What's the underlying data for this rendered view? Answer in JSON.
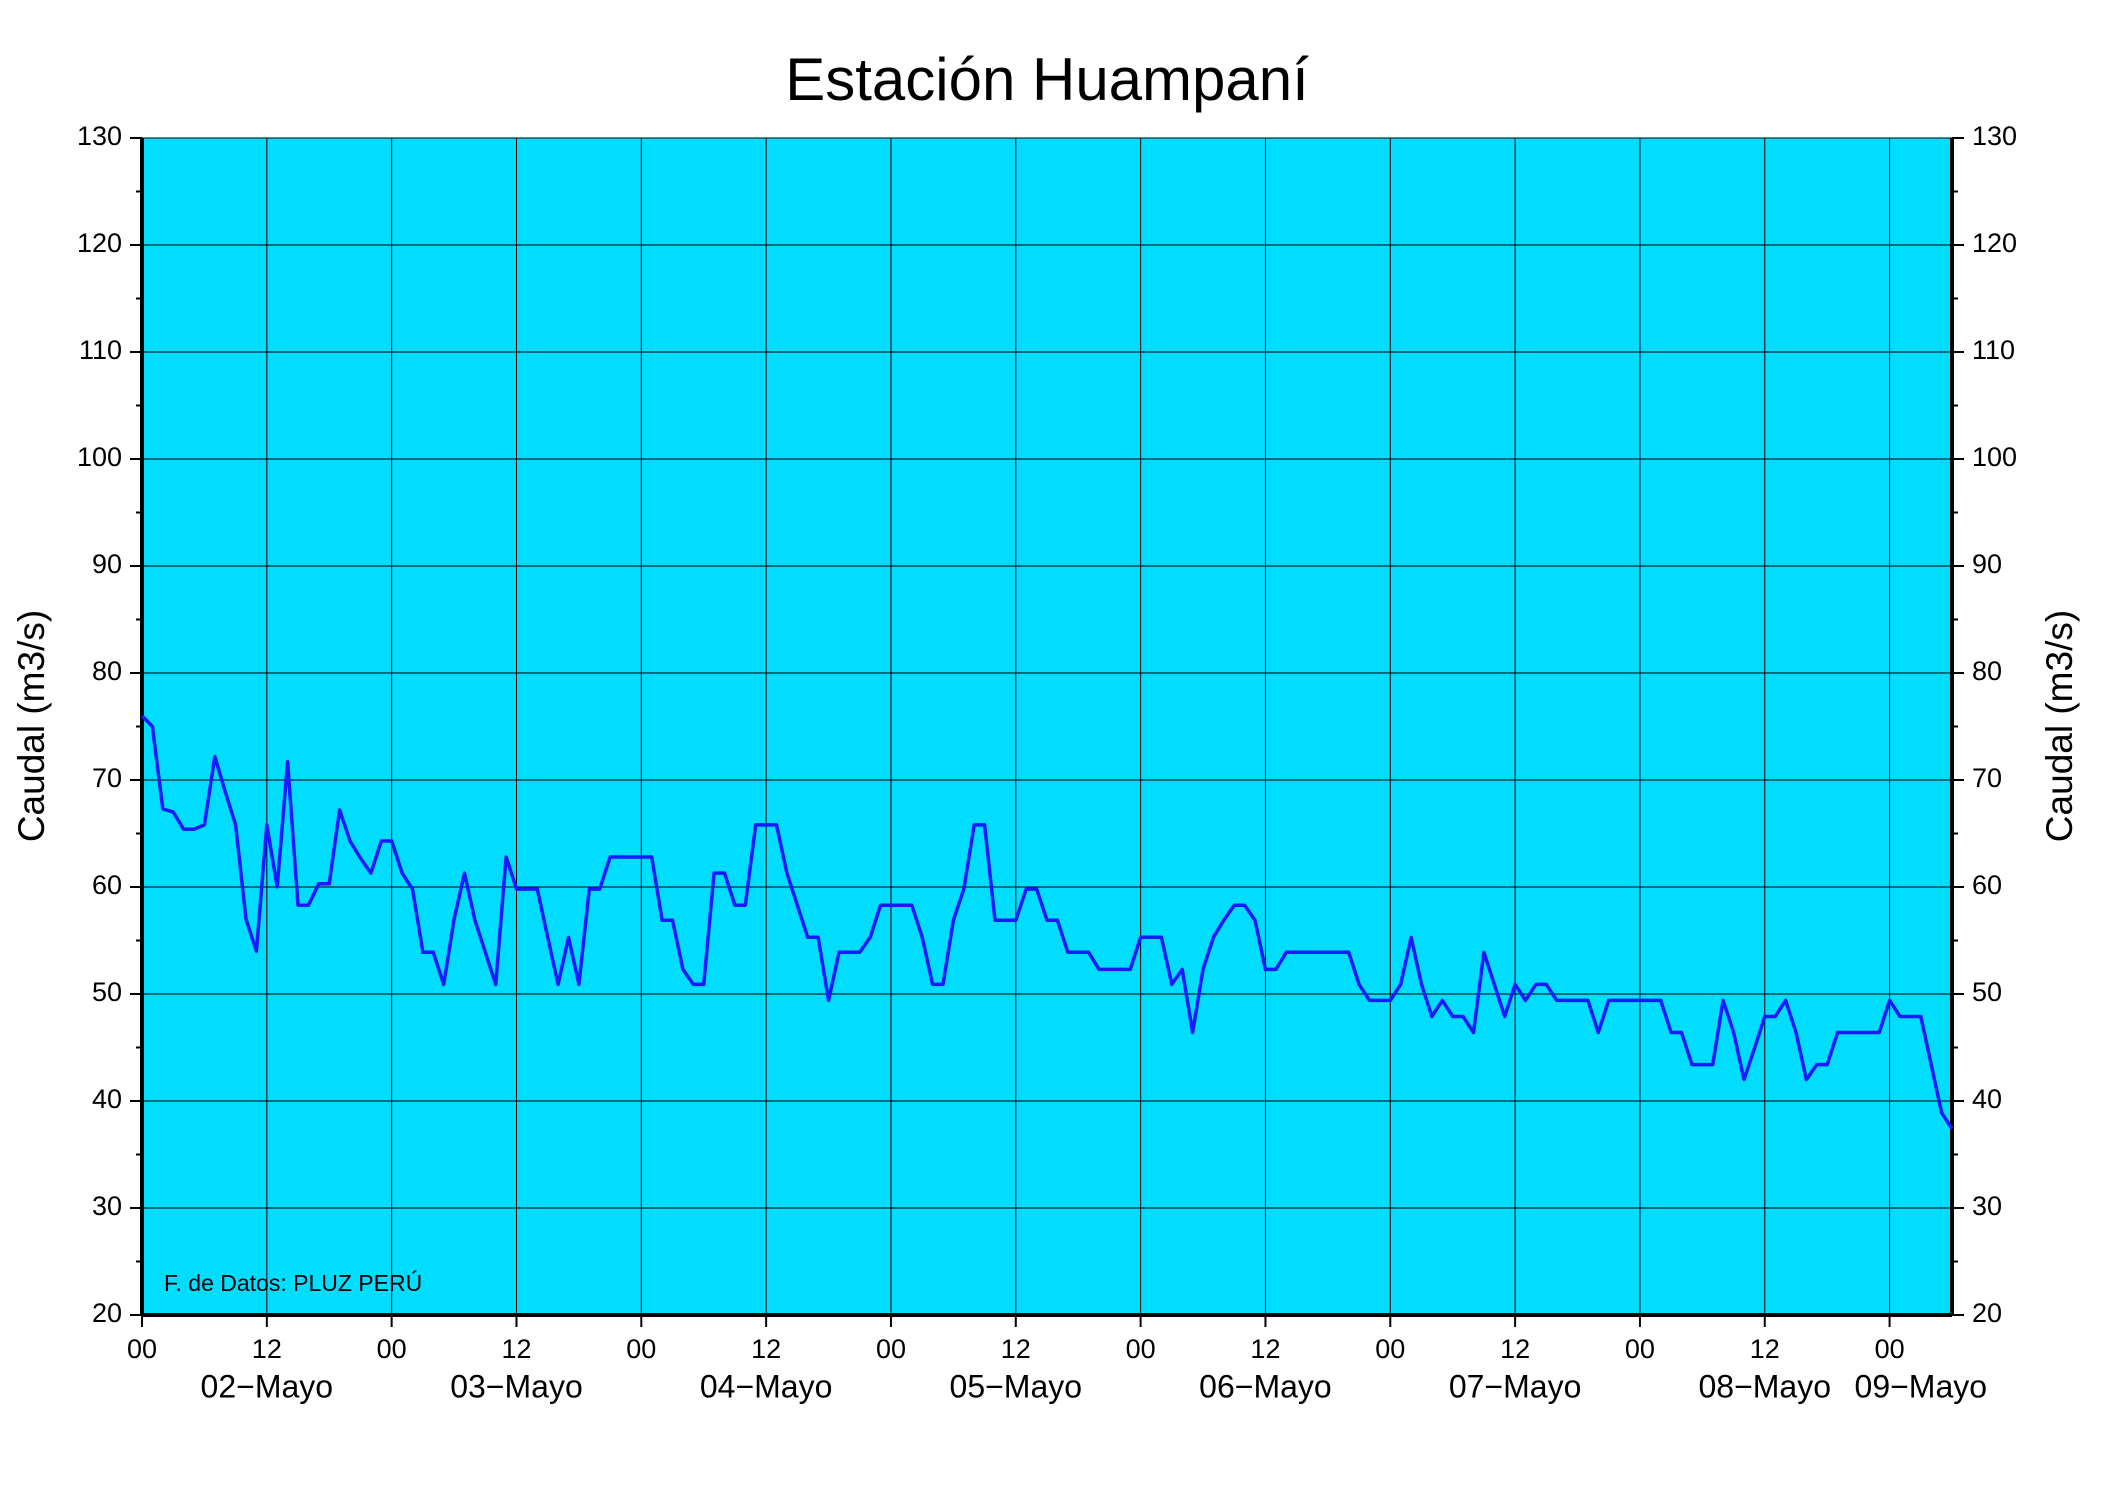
{
  "chart_data": {
    "type": "line",
    "title": "Estación Huampaní",
    "ylabel": "Caudal (m3/s)",
    "y2label": "Caudal (m3/s)",
    "annotation": "F. de Datos: PLUZ PERÚ",
    "xlim": [
      0,
      174
    ],
    "xticks": [
      {
        "value": 0,
        "label": "00"
      },
      12,
      {
        "value": 24,
        "label": "00"
      },
      {
        "value": 36,
        "label": "12"
      },
      {
        "value": 48,
        "label": "00"
      },
      {
        "value": 60,
        "label": "12"
      },
      {
        "value": 72,
        "label": "00"
      },
      {
        "value": 84,
        "label": "12"
      },
      {
        "value": 96,
        "label": "00"
      },
      {
        "value": 108,
        "label": "12"
      },
      {
        "value": 120,
        "label": "00"
      },
      {
        "value": 132,
        "label": "12"
      },
      {
        "value": 144,
        "label": "00"
      },
      {
        "value": 156,
        "label": "12"
      },
      {
        "value": 168,
        "label": "00"
      }
    ],
    "date_labels": [
      {
        "value": 12,
        "label": "02−Mayo"
      },
      {
        "value": 36,
        "label": "03−Mayo"
      },
      {
        "value": 60,
        "label": "04−Mayo"
      },
      {
        "value": 84,
        "label": "05−Mayo"
      },
      {
        "value": 108,
        "label": "06−Mayo"
      },
      {
        "value": 132,
        "label": "07−Mayo"
      },
      {
        "value": 156,
        "label": "08−Mayo"
      },
      {
        "value": 171,
        "label": "09−Mayo"
      }
    ],
    "ylim": [
      20,
      130
    ],
    "yticks": [
      20,
      30,
      40,
      50,
      60,
      70,
      80,
      90,
      100,
      110,
      120,
      130
    ],
    "yminorticks": [
      25,
      35,
      45,
      55,
      65,
      75,
      85,
      95,
      105,
      115,
      125
    ],
    "y2lim": [
      20,
      130
    ],
    "y2ticks": [
      20,
      30,
      40,
      50,
      60,
      70,
      80,
      90,
      100,
      110,
      120,
      130
    ],
    "grid": true,
    "background": "#00ddff",
    "series": [
      {
        "color": "#1a1aff",
        "values": [
          76,
          75,
          67.3,
          67,
          65.4,
          65.4,
          65.8,
          72.2,
          68.9,
          65.8,
          57,
          54,
          65.8,
          60,
          71.7,
          58.3,
          58.3,
          60.3,
          60.3,
          67.2,
          64.3,
          62.7,
          61.3,
          64.3,
          64.3,
          61.3,
          59.8,
          53.9,
          53.9,
          50.9,
          57,
          61.3,
          56.9,
          53.9,
          50.9,
          62.8,
          59.8,
          59.8,
          59.8,
          55.3,
          50.9,
          55.3,
          50.9,
          59.8,
          59.8,
          62.8,
          62.8,
          62.8,
          62.8,
          62.8,
          56.9,
          56.9,
          52.3,
          50.9,
          50.9,
          61.3,
          61.3,
          58.3,
          58.3,
          65.8,
          65.8,
          65.8,
          61.3,
          58.3,
          55.3,
          55.3,
          49.4,
          53.9,
          53.9,
          53.9,
          55.3,
          58.3,
          58.3,
          58.3,
          58.3,
          55.3,
          50.9,
          50.9,
          56.9,
          59.8,
          65.8,
          65.8,
          56.9,
          56.9,
          56.9,
          59.8,
          59.8,
          56.9,
          56.9,
          53.9,
          53.9,
          53.9,
          52.3,
          52.3,
          52.3,
          52.3,
          55.3,
          55.3,
          55.3,
          50.9,
          52.3,
          46.4,
          52.3,
          55.3,
          56.9,
          58.3,
          58.3,
          56.9,
          52.3,
          52.3,
          53.9,
          53.9,
          53.9,
          53.9,
          53.9,
          53.9,
          53.9,
          50.9,
          49.4,
          49.4,
          49.4,
          50.9,
          55.3,
          50.9,
          47.9,
          49.4,
          47.9,
          47.9,
          46.4,
          53.9,
          50.9,
          47.9,
          50.9,
          49.4,
          50.9,
          50.9,
          49.4,
          49.4,
          49.4,
          49.4,
          46.4,
          49.4,
          49.4,
          49.4,
          49.4,
          49.4,
          49.4,
          46.4,
          46.4,
          43.4,
          43.4,
          43.4,
          49.4,
          46.4,
          42,
          44.9,
          47.9,
          47.9,
          49.4,
          46.4,
          42,
          43.4,
          43.4,
          46.4,
          46.4,
          46.4,
          46.4,
          46.4,
          49.4,
          47.9,
          47.9,
          47.9,
          43.4,
          38.9,
          37.4
        ]
      }
    ]
  }
}
